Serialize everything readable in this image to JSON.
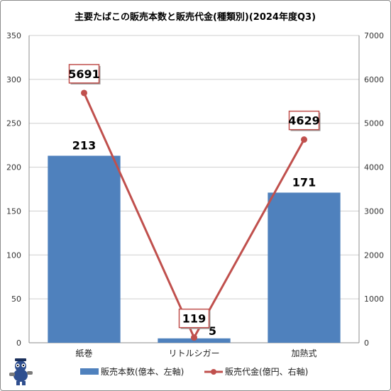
{
  "chart_data": {
    "type": "bar+line",
    "title": "主要たばこの販売本数と販売代金(種類別)(2024年度Q3)",
    "categories": [
      "紙巻",
      "リトルシガー",
      "加熱式"
    ],
    "series": [
      {
        "name": "販売本数(億本、左軸)",
        "type": "bar",
        "axis": "left",
        "color": "#4f81bd",
        "values": [
          213,
          5,
          171
        ],
        "labels": [
          "213",
          "5",
          "171"
        ]
      },
      {
        "name": "販売代金(億円、右軸)",
        "type": "line",
        "axis": "right",
        "color": "#c0504d",
        "values": [
          5691,
          119,
          4629
        ],
        "labels": [
          "5691",
          "119",
          "4629"
        ]
      }
    ],
    "y_left": {
      "min": 0,
      "max": 350,
      "step": 50,
      "ticks": [
        "0",
        "50",
        "100",
        "150",
        "200",
        "250",
        "300",
        "350"
      ]
    },
    "y_right": {
      "min": 0,
      "max": 7000,
      "step": 1000,
      "ticks": [
        "0",
        "1000",
        "2000",
        "3000",
        "4000",
        "5000",
        "6000",
        "7000"
      ]
    },
    "grid": true,
    "legend_position": "bottom"
  }
}
